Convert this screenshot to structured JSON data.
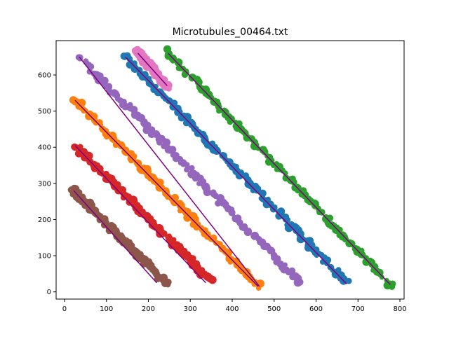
{
  "chart_data": {
    "type": "scatter",
    "title": "Microtubules_00464.txt",
    "xlabel": "",
    "ylabel": "",
    "xlim": [
      -20,
      810
    ],
    "ylim": [
      -20,
      695
    ],
    "xticks": [
      0,
      100,
      200,
      300,
      400,
      500,
      600,
      700,
      800
    ],
    "yticks": [
      0,
      100,
      200,
      300,
      400,
      500,
      600
    ],
    "grid": false,
    "legend": "none",
    "series": [
      {
        "color": "#1f77b4",
        "fit_color": "#800080",
        "start": [
          140,
          655
        ],
        "end": [
          675,
          25
        ],
        "fit_start": [
          145,
          650
        ],
        "fit_end": [
          673,
          22
        ]
      },
      {
        "color": "#ff7f0e",
        "fit_color": "#800080",
        "start": [
          20,
          535
        ],
        "end": [
          465,
          15
        ],
        "fit_start": [
          25,
          530
        ],
        "fit_end": [
          462,
          15
        ]
      },
      {
        "color": "#2ca02c",
        "fit_color": "#800080",
        "start": [
          242,
          665
        ],
        "end": [
          782,
          15
        ],
        "fit_start": [
          247,
          660
        ],
        "fit_end": [
          777,
          20
        ]
      },
      {
        "color": "#d62728",
        "fit_color": "#800080",
        "start": [
          22,
          408
        ],
        "end": [
          350,
          30
        ],
        "fit_start": [
          25,
          405
        ],
        "fit_end": [
          337,
          25
        ]
      },
      {
        "color": "#9467bd",
        "fit_color": "#800080",
        "start": [
          30,
          655
        ],
        "end": [
          562,
          25
        ],
        "fit_start": [
          35,
          650
        ],
        "fit_end": [
          465,
          15
        ]
      },
      {
        "color": "#8c564b",
        "fit_color": "#800080",
        "start": [
          20,
          282
        ],
        "end": [
          245,
          20
        ],
        "fit_start": [
          22,
          280
        ],
        "fit_end": [
          220,
          25
        ]
      },
      {
        "color": "#e377c2",
        "fit_color": "#800080",
        "start": [
          172,
          665
        ],
        "end": [
          245,
          568
        ],
        "fit_start": [
          175,
          660
        ],
        "fit_end": [
          245,
          570
        ]
      }
    ]
  }
}
